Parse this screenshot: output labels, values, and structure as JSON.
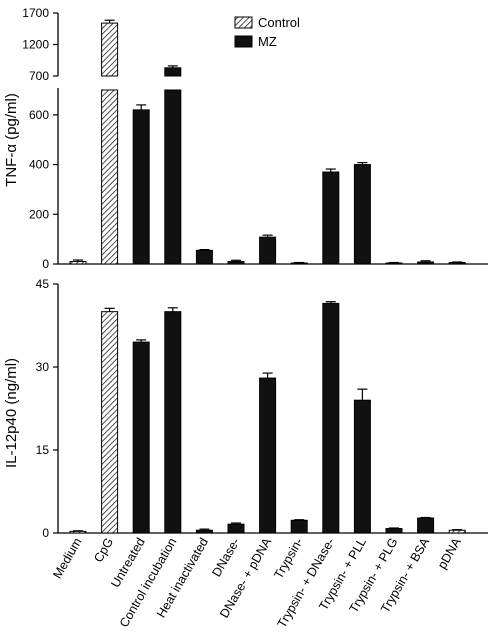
{
  "colors": {
    "bar_fill": "#111111",
    "hatch_fill": "#ffffff",
    "hatch_stroke": "#222222",
    "axis": "#000000"
  },
  "chart_data": [
    {
      "type": "bar",
      "panel": "top",
      "ylabel": "TNF-α (pg/ml)",
      "ylim": [
        0,
        1700
      ],
      "axis_break": {
        "after": 700,
        "lower_range": [
          0,
          700
        ],
        "upper_range": [
          700,
          1700
        ]
      },
      "yticks": [
        0,
        200,
        400,
        600,
        700,
        1200,
        1700
      ],
      "categories": [
        "Medium",
        "CpG",
        "Untreated",
        "Control incubation",
        "Heat inactivated",
        "DNase-",
        "DNase- + pDNA",
        "Trypsin-",
        "Trypsin- + DNase-",
        "Trypsin- + PLL",
        "Trypsin- + PLG",
        "Trypsin- + BSA",
        "pDNA"
      ],
      "series": [
        {
          "name": "Control",
          "values": [
            10,
            1540,
            null,
            null,
            null,
            null,
            null,
            null,
            null,
            null,
            null,
            null,
            null
          ],
          "errors": [
            6,
            45,
            null,
            null,
            null,
            null,
            null,
            null,
            null,
            null,
            null,
            null,
            null
          ]
        },
        {
          "name": "MZ",
          "values": [
            null,
            null,
            620,
            830,
            55,
            10,
            108,
            4,
            370,
            400,
            4,
            8,
            6
          ],
          "errors": [
            null,
            null,
            20,
            30,
            3,
            5,
            8,
            2,
            12,
            8,
            2,
            5,
            2
          ]
        }
      ],
      "legend": {
        "position": "top-right",
        "entries": [
          "Control",
          "MZ"
        ]
      }
    },
    {
      "type": "bar",
      "panel": "bottom",
      "ylabel": "IL-12p40 (ng/ml)",
      "ylim": [
        0,
        45
      ],
      "yticks": [
        0,
        15,
        30,
        45
      ],
      "categories": [
        "Medium",
        "CpG",
        "Untreated",
        "Control incubation",
        "Heat inactivated",
        "DNase-",
        "DNase- + pDNA",
        "Trypsin-",
        "Trypsin- + DNase-",
        "Trypsin- + PLL",
        "Trypsin- + PLG",
        "Trypsin- + BSA",
        "pDNA"
      ],
      "series": [
        {
          "name": "Control",
          "values": [
            0.3,
            40,
            null,
            null,
            null,
            null,
            null,
            null,
            null,
            null,
            null,
            null,
            0.5
          ],
          "errors": [
            0.1,
            0.6,
            null,
            null,
            null,
            null,
            null,
            null,
            null,
            null,
            null,
            null,
            0.1
          ]
        },
        {
          "name": "MZ",
          "values": [
            null,
            null,
            34.5,
            40,
            0.5,
            1.6,
            28,
            2.3,
            41.5,
            24,
            0.8,
            2.7,
            null
          ],
          "errors": [
            null,
            null,
            0.4,
            0.7,
            0.2,
            0.2,
            0.9,
            0.1,
            0.3,
            2,
            0.1,
            0.1,
            null
          ]
        }
      ]
    }
  ]
}
